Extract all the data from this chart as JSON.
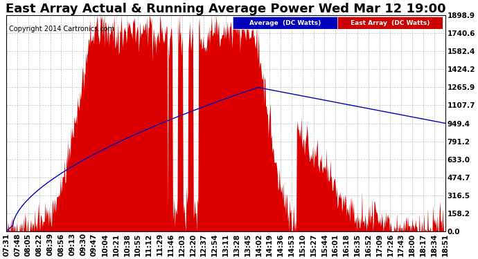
{
  "title": "East Array Actual & Running Average Power Wed Mar 12 19:00",
  "copyright": "Copyright 2014 Cartronics.com",
  "legend_labels": [
    "Average  (DC Watts)",
    "East Array  (DC Watts)"
  ],
  "legend_colors": [
    "#0000bb",
    "#cc0000"
  ],
  "y_ticks": [
    0.0,
    158.2,
    316.5,
    474.7,
    633.0,
    791.2,
    949.4,
    1107.7,
    1265.9,
    1424.2,
    1582.4,
    1740.6,
    1898.9
  ],
  "ymax": 1898.9,
  "background_color": "#ffffff",
  "plot_bg_color": "#ffffff",
  "grid_color": "#999999",
  "x_labels": [
    "07:31",
    "07:48",
    "08:05",
    "08:22",
    "08:39",
    "08:56",
    "09:13",
    "09:30",
    "09:47",
    "10:04",
    "10:21",
    "10:38",
    "10:55",
    "11:12",
    "11:29",
    "11:46",
    "12:03",
    "12:20",
    "12:37",
    "12:54",
    "13:11",
    "13:28",
    "13:45",
    "14:02",
    "14:19",
    "14:36",
    "14:53",
    "15:10",
    "15:27",
    "15:44",
    "16:01",
    "16:18",
    "16:35",
    "16:52",
    "17:09",
    "17:26",
    "17:43",
    "18:00",
    "18:17",
    "18:34",
    "18:51"
  ],
  "title_fontsize": 13,
  "axis_fontsize": 7.5,
  "copyright_fontsize": 7
}
